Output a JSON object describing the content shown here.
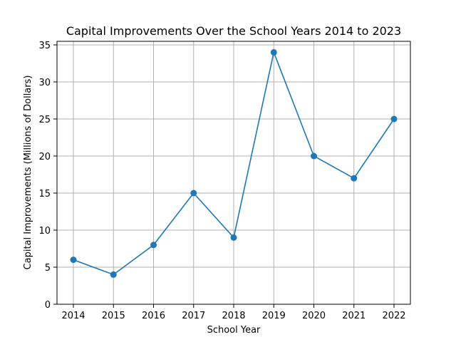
{
  "chart_data": {
    "type": "line",
    "title": "Capital Improvements Over the School Years 2014 to 2023",
    "xlabel": "School Year",
    "ylabel": "Capital Improvements (Millions of Dollars)",
    "categories": [
      "2014",
      "2015",
      "2016",
      "2017",
      "2018",
      "2019",
      "2020",
      "2021",
      "2022"
    ],
    "series": [
      {
        "values": [
          6,
          4,
          8,
          15,
          9,
          34,
          20,
          17,
          25
        ],
        "color": "#1f77b4"
      }
    ],
    "ylim": [
      0,
      35
    ],
    "yticks": [
      0,
      5,
      10,
      15,
      20,
      25,
      30,
      35
    ],
    "grid": true,
    "marker": "circle"
  }
}
